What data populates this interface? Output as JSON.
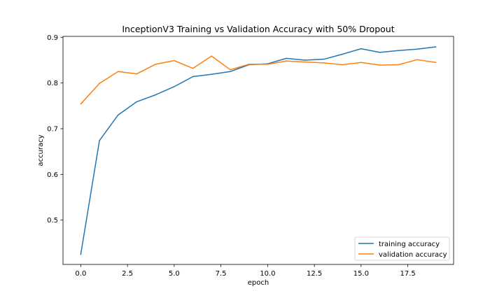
{
  "chart_data": {
    "type": "line",
    "title": "InceptionV3 Training vs Validation Accuracy with 50% Dropout",
    "xlabel": "epoch",
    "ylabel": "accuracy",
    "xlim": [
      -0.95,
      19.95
    ],
    "ylim": [
      0.403,
      0.902
    ],
    "x_ticks": [
      0.0,
      2.5,
      5.0,
      7.5,
      10.0,
      12.5,
      15.0,
      17.5
    ],
    "x_tick_labels": [
      "0.0",
      "2.5",
      "5.0",
      "7.5",
      "10.0",
      "12.5",
      "15.0",
      "17.5"
    ],
    "y_ticks": [
      0.5,
      0.6,
      0.7,
      0.8,
      0.9
    ],
    "y_tick_labels": [
      "0.5",
      "0.6",
      "0.7",
      "0.8",
      "0.9"
    ],
    "grid": false,
    "legend_position": "bottom-right",
    "x": [
      0,
      1,
      2,
      3,
      4,
      5,
      6,
      7,
      8,
      9,
      10,
      11,
      12,
      13,
      14,
      15,
      16,
      17,
      18,
      19
    ],
    "series": [
      {
        "name": "training accuracy",
        "color": "#1f77b4",
        "values": [
          0.425,
          0.674,
          0.73,
          0.759,
          0.774,
          0.792,
          0.814,
          0.819,
          0.825,
          0.84,
          0.842,
          0.854,
          0.85,
          0.852,
          0.863,
          0.875,
          0.867,
          0.871,
          0.874,
          0.879
        ]
      },
      {
        "name": "validation accuracy",
        "color": "#ff7f0e",
        "values": [
          0.754,
          0.799,
          0.825,
          0.82,
          0.841,
          0.849,
          0.832,
          0.859,
          0.829,
          0.841,
          0.841,
          0.848,
          0.846,
          0.844,
          0.84,
          0.845,
          0.839,
          0.84,
          0.851,
          0.845
        ]
      }
    ]
  }
}
